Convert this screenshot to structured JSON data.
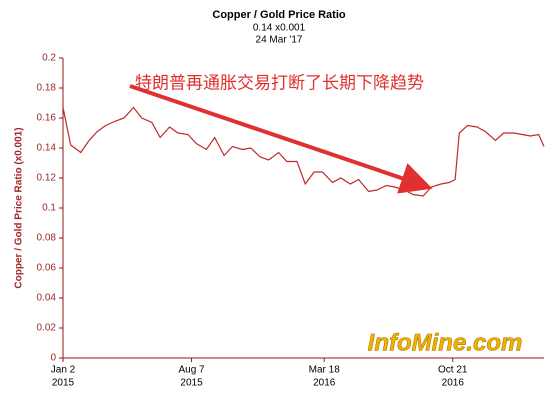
{
  "chart_data": {
    "type": "line",
    "title": "Copper / Gold Price Ratio",
    "subtitle": "0.14 x0.001",
    "date_label": "24 Mar '17",
    "ylabel": "Copper / Gold Price Ratio (x0.001)",
    "annotation": "特朗普再通胀交易打断了长期下降趋势",
    "watermark": "InfoMine.com",
    "color": "#c0282d",
    "x": [
      "2015-01-02",
      "2015-01-15",
      "2015-02-01",
      "2015-02-15",
      "2015-03-01",
      "2015-03-15",
      "2015-04-01",
      "2015-04-15",
      "2015-05-01",
      "2015-05-15",
      "2015-06-01",
      "2015-06-15",
      "2015-07-01",
      "2015-07-15",
      "2015-08-01",
      "2015-08-15",
      "2015-09-01",
      "2015-09-15",
      "2015-10-01",
      "2015-10-15",
      "2015-11-01",
      "2015-11-15",
      "2015-12-01",
      "2015-12-15",
      "2016-01-01",
      "2016-01-15",
      "2016-02-01",
      "2016-02-15",
      "2016-03-01",
      "2016-03-15",
      "2016-04-01",
      "2016-04-15",
      "2016-05-01",
      "2016-05-15",
      "2016-06-01",
      "2016-06-15",
      "2016-07-01",
      "2016-07-15",
      "2016-08-01",
      "2016-08-15",
      "2016-09-01",
      "2016-09-15",
      "2016-10-01",
      "2016-10-15",
      "2016-10-25",
      "2016-11-01",
      "2016-11-15",
      "2016-12-01",
      "2016-12-15",
      "2017-01-01",
      "2017-01-15",
      "2017-02-01",
      "2017-02-15",
      "2017-03-01",
      "2017-03-15",
      "2017-03-24"
    ],
    "values": [
      0.167,
      0.142,
      0.137,
      0.145,
      0.151,
      0.155,
      0.158,
      0.16,
      0.167,
      0.16,
      0.157,
      0.147,
      0.154,
      0.15,
      0.149,
      0.143,
      0.139,
      0.147,
      0.135,
      0.141,
      0.139,
      0.14,
      0.134,
      0.132,
      0.137,
      0.131,
      0.131,
      0.116,
      0.124,
      0.124,
      0.117,
      0.12,
      0.116,
      0.119,
      0.111,
      0.112,
      0.115,
      0.114,
      0.112,
      0.109,
      0.108,
      0.114,
      0.116,
      0.117,
      0.119,
      0.15,
      0.155,
      0.154,
      0.151,
      0.145,
      0.15,
      0.15,
      0.149,
      0.148,
      0.149,
      0.141
    ],
    "xlim": [
      "2015-01-02",
      "2017-03-24"
    ],
    "xticks": [
      {
        "value": "2015-01-02",
        "label": [
          "Jan 2",
          "2015"
        ]
      },
      {
        "value": "2015-08-07",
        "label": [
          "Aug 7",
          "2015"
        ]
      },
      {
        "value": "2016-03-18",
        "label": [
          "Mar 18",
          "2016"
        ]
      },
      {
        "value": "2016-10-21",
        "label": [
          "Oct 21",
          "2016"
        ]
      }
    ],
    "ylim": [
      0,
      0.2
    ],
    "yticks": [
      0,
      0.02,
      0.04,
      0.06,
      0.08,
      0.1,
      0.12,
      0.14,
      0.16,
      0.18,
      0.2
    ],
    "grid": false
  }
}
